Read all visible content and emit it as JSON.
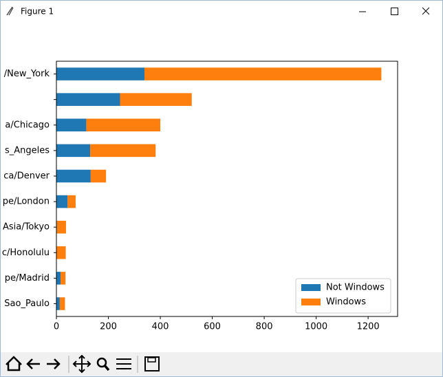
{
  "window": {
    "title": "Figure 1"
  },
  "chart_data": {
    "type": "stacked-barh",
    "categories": [
      "/New_York",
      null,
      "a/Chicago",
      "s_Angeles",
      "ca/Denver",
      "pe/London",
      "Asia/Tokyo",
      "c/Honolulu",
      "pe/Madrid",
      "Sao_Paulo"
    ],
    "series": [
      {
        "name": "Not Windows",
        "color": "#1f77b4",
        "values": [
          339,
          245,
          115,
          130,
          132,
          43,
          2,
          0,
          16,
          13
        ]
      },
      {
        "name": "Windows",
        "color": "#ff7f0e",
        "values": [
          912,
          276,
          285,
          252,
          59,
          31,
          35,
          36,
          19,
          20
        ]
      }
    ],
    "xlim": [
      0,
      1313.5
    ],
    "xticks": [
      0,
      200,
      400,
      600,
      800,
      1000,
      1200
    ],
    "legend": "lower right"
  }
}
